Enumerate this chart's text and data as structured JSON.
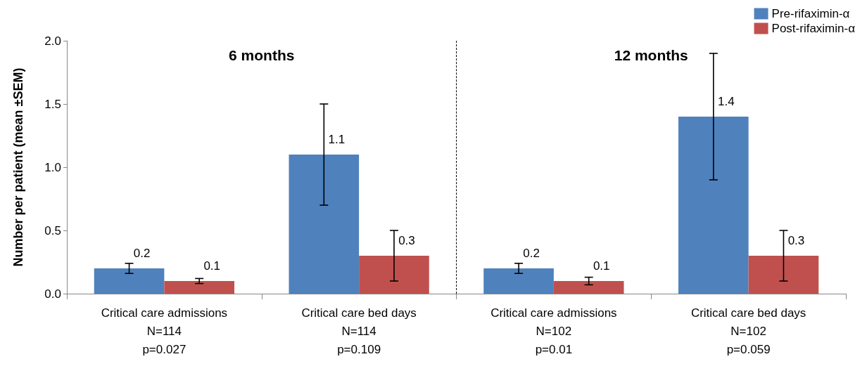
{
  "chart_data": {
    "type": "bar",
    "ylabel": "Number per patient (mean ±SEM)",
    "categories": [
      "Critical care admissions\nN=114\np=0.027",
      "Critical care bed days\nN=114\np=0.109",
      "Critical care admissions\nN=102\np=0.01",
      "Critical care bed days\nN=102\np=0.059"
    ],
    "series": [
      {
        "name": "Pre-rifaximin-α",
        "color": "#4f81bd",
        "values": [
          0.2,
          1.1,
          0.2,
          1.4
        ],
        "errors": [
          0.04,
          0.4,
          0.04,
          0.5
        ]
      },
      {
        "name": "Post-rifaximin-α",
        "color": "#c0504d",
        "values": [
          0.1,
          0.3,
          0.1,
          0.3
        ],
        "errors": [
          0.02,
          0.2,
          0.03,
          0.2
        ]
      }
    ],
    "ylim": [
      0,
      2
    ],
    "yticks": [
      {
        "value": 0,
        "label": "0.0"
      },
      {
        "value": 0.5,
        "label": "0.5"
      },
      {
        "value": 1,
        "label": "1.0"
      },
      {
        "value": 1.5,
        "label": "1.5"
      },
      {
        "value": 2,
        "label": "2.0"
      }
    ],
    "annotations": [
      "6 months",
      "12 months"
    ],
    "data_labels": true,
    "grid": false,
    "legend": "top right"
  }
}
